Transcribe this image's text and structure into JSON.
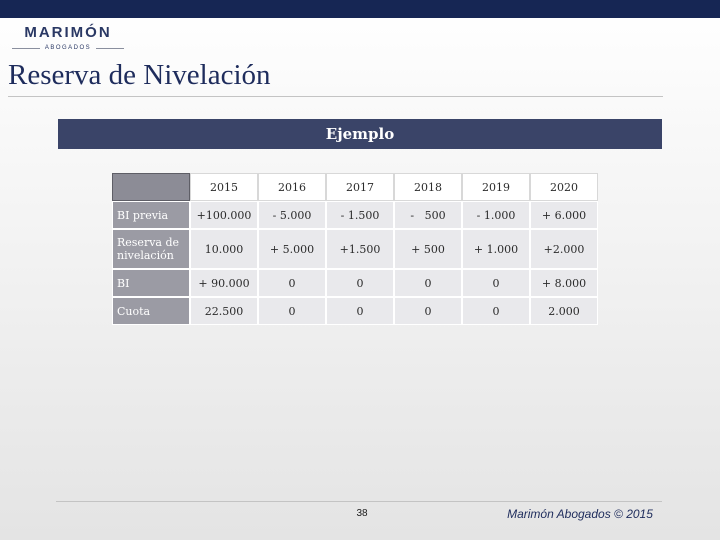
{
  "logo": {
    "name": "MARIMÓN",
    "tagline": "ABOGADOS"
  },
  "title": "Reserva de Nivelación",
  "section_header": "Ejemplo",
  "table": {
    "years": [
      "2015",
      "2016",
      "2017",
      "2018",
      "2019",
      "2020"
    ],
    "rows": [
      {
        "label": "BI previa",
        "values": [
          "+100.000",
          "- 5.000",
          "- 1.500",
          "-   500",
          "- 1.000",
          "+ 6.000"
        ]
      },
      {
        "label": "Reserva de nivelación",
        "values": [
          "10.000",
          "+ 5.000",
          "+1.500",
          "+ 500",
          "+ 1.000",
          "+2.000"
        ]
      },
      {
        "label": "BI",
        "values": [
          "+ 90.000",
          "0",
          "0",
          "0",
          "0",
          "+ 8.000"
        ]
      },
      {
        "label": "Cuota",
        "values": [
          "22.500",
          "0",
          "0",
          "0",
          "0",
          "2.000"
        ]
      }
    ]
  },
  "footer": {
    "page_number": "38",
    "copyright": "Marimón Abogados © 2015"
  },
  "colors": {
    "top_bar": "#162654",
    "section_bar": "#3a4468",
    "title_text": "#1e2c5c",
    "row_label_bg": "#9b9ba4"
  }
}
